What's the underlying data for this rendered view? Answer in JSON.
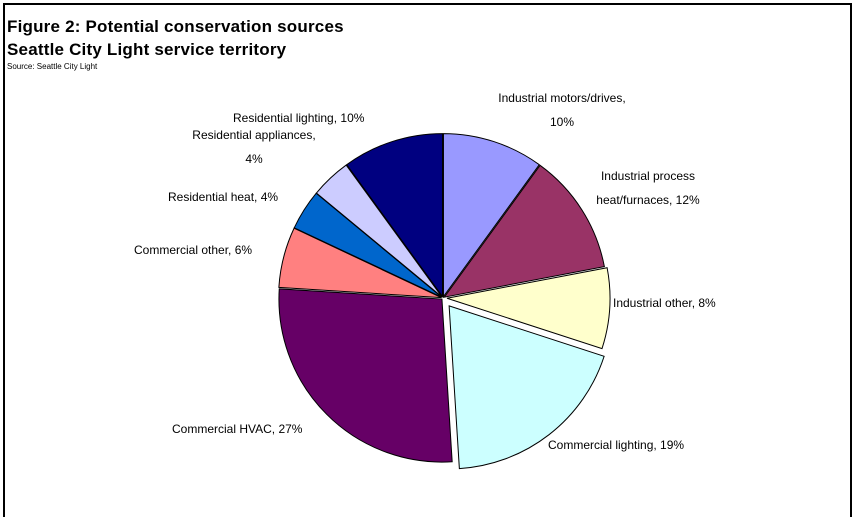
{
  "chart_data": {
    "type": "pie",
    "title": "Figure 2: Potential conservation sources",
    "subtitle": "Seattle City Light service territory",
    "source": "Source: Seattle City Light",
    "slices": [
      {
        "label_lines": [
          "Industrial motors/drives,",
          "10%"
        ],
        "value": 10,
        "color": "#9999ff"
      },
      {
        "label_lines": [
          "Industrial process",
          "heat/furnaces, 12%"
        ],
        "value": 12,
        "color": "#993366"
      },
      {
        "label_lines": [
          "Industrial other, 8%"
        ],
        "value": 8,
        "color": "#ffffcc"
      },
      {
        "label_lines": [
          "Commercial lighting, 19%"
        ],
        "value": 19,
        "color": "#ccffff"
      },
      {
        "label_lines": [
          "Commercial HVAC, 27%"
        ],
        "value": 27,
        "color": "#660066"
      },
      {
        "label_lines": [
          "Commercial other, 6%"
        ],
        "value": 6,
        "color": "#ff8080"
      },
      {
        "label_lines": [
          "Residential heat, 4%"
        ],
        "value": 4,
        "color": "#0066cc"
      },
      {
        "label_lines": [
          "Residential appliances,",
          "4%"
        ],
        "value": 4,
        "color": "#ccccff"
      },
      {
        "label_lines": [
          "Residential lighting, 10%"
        ],
        "value": 10,
        "color": "#000080"
      }
    ]
  }
}
